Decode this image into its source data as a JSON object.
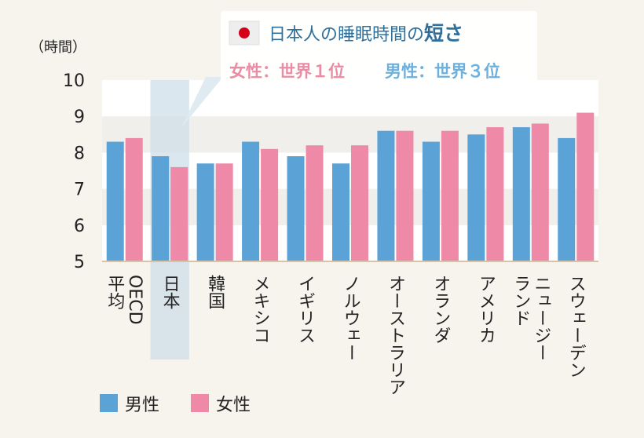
{
  "chart_data": {
    "type": "bar",
    "unit_label": "（時間）",
    "ylim": [
      5,
      10
    ],
    "yticks": [
      "5",
      "6",
      "7",
      "8",
      "9",
      "10"
    ],
    "categories": [
      "OECD平均",
      "日本",
      "韓国",
      "メキシコ",
      "イギリス",
      "ノルウェー",
      "オーストラリア",
      "オランダ",
      "アメリカ",
      "ニュージーランド",
      "スウェーデン"
    ],
    "category_lines": [
      [
        "平均",
        "OECD"
      ],
      [
        "日本"
      ],
      [
        "韓国"
      ],
      [
        "メキシコ"
      ],
      [
        "イギリス"
      ],
      [
        "ノルウェー"
      ],
      [
        "オーストラリア"
      ],
      [
        "オランダ"
      ],
      [
        "アメリカ"
      ],
      [
        "ランド",
        "ニュージー"
      ],
      [
        "スウェーデン"
      ]
    ],
    "highlight_category": "日本",
    "series": [
      {
        "name": "男性",
        "color": "#5ba3d6",
        "values": [
          8.3,
          7.9,
          7.7,
          8.3,
          7.9,
          7.7,
          8.6,
          8.3,
          8.5,
          8.7,
          8.4
        ]
      },
      {
        "name": "女性",
        "color": "#ee8aa7",
        "values": [
          8.4,
          7.6,
          7.7,
          8.1,
          8.2,
          8.2,
          8.6,
          8.6,
          8.7,
          8.8,
          9.1
        ]
      }
    ],
    "grid": true,
    "legend_position": "bottom-left"
  },
  "annotation": {
    "icon": "japan-flag-icon",
    "title_main": "日本人の睡眠時間の",
    "title_emphasis": "短さ",
    "female_rank": "女性：世界１位",
    "male_rank": "男性：世界３位"
  },
  "colors": {
    "background": "#f7f4ee",
    "plot_band_light": "#ffffff",
    "plot_band_dark": "#f1efeb",
    "axis": "#d8c3a8",
    "highlight": "#cfdfe8",
    "male": "#5ba3d6",
    "female": "#ee8aa7",
    "flag_red": "#d4001a",
    "title_blue": "#2f6f99"
  }
}
